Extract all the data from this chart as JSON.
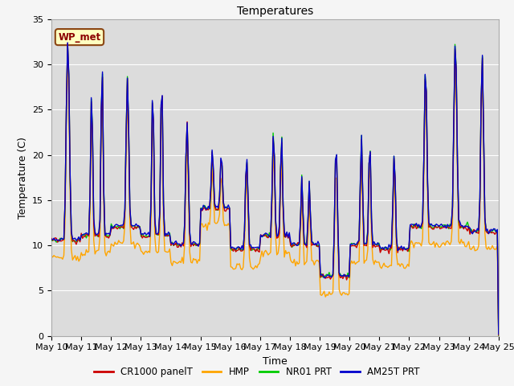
{
  "title": "Temperatures",
  "xlabel": "Time",
  "ylabel": "Temperature (C)",
  "ylim": [
    0,
    35
  ],
  "yticks": [
    0,
    5,
    10,
    15,
    20,
    25,
    30,
    35
  ],
  "xlim": [
    0,
    15
  ],
  "xtick_labels": [
    "May 10",
    "May 11",
    "May 12",
    "May 13",
    "May 14",
    "May 15",
    "May 16",
    "May 17",
    "May 18",
    "May 19",
    "May 20",
    "May 21",
    "May 22",
    "May 23",
    "May 24",
    "May 25"
  ],
  "annotation_text": "WP_met",
  "annotation_box_color": "#FFFFC0",
  "annotation_box_edge_color": "#8B4513",
  "annotation_text_color": "#8B0000",
  "series_colors": [
    "#CC0000",
    "#FFA500",
    "#00CC00",
    "#0000CC"
  ],
  "series_labels": [
    "CR1000 panelT",
    "HMP",
    "NR01 PRT",
    "AM25T PRT"
  ],
  "fig_bg_color": "#F5F5F5",
  "plot_bg_color": "#DCDCDC",
  "grid_color": "#FFFFFF",
  "title_fontsize": 10,
  "axis_label_fontsize": 9,
  "tick_fontsize": 8
}
